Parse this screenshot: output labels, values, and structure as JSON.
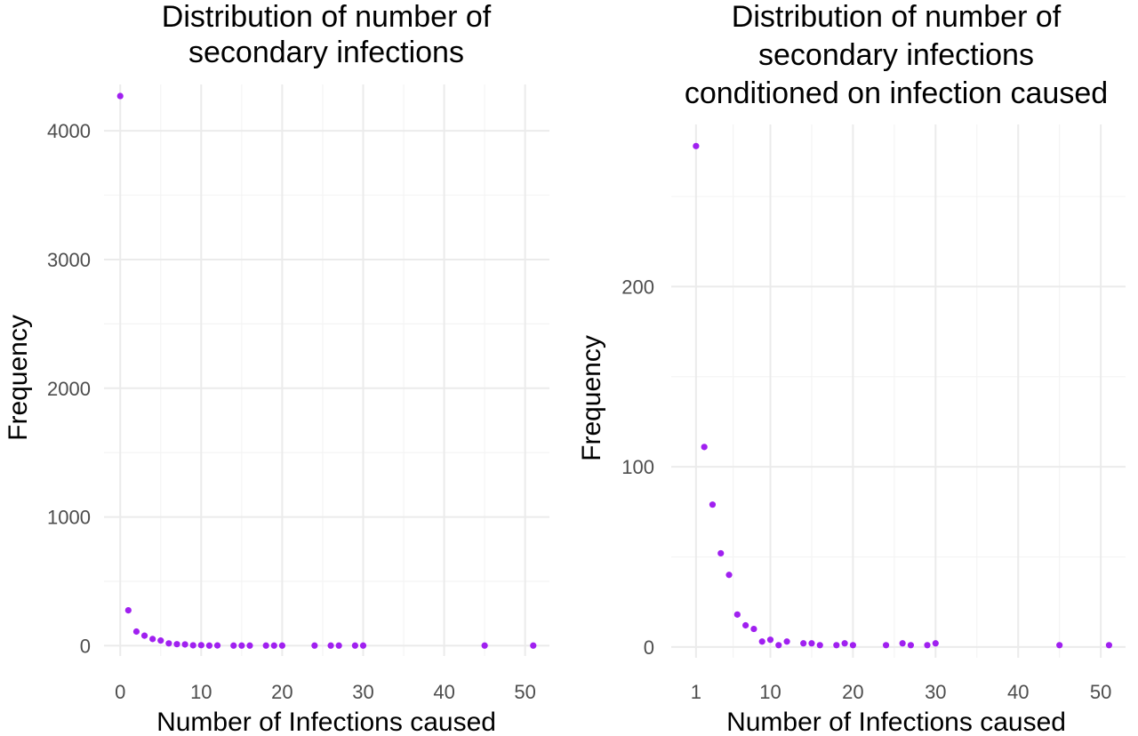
{
  "chart_data": [
    {
      "type": "scatter",
      "title": [
        "Distribution of number of",
        "secondary infections"
      ],
      "xlabel": "Number of Infections caused",
      "ylabel": "Frequency",
      "xlim": [
        -2,
        53
      ],
      "ylim": [
        -80,
        4360
      ],
      "xticks": [
        0,
        10,
        20,
        30,
        40,
        50
      ],
      "yticks": [
        0,
        1000,
        2000,
        3000,
        4000
      ],
      "grid": true,
      "point_color": "#a020f0",
      "points": [
        {
          "x": 0,
          "y": 4270
        },
        {
          "x": 1,
          "y": 275
        },
        {
          "x": 2,
          "y": 110
        },
        {
          "x": 3,
          "y": 78
        },
        {
          "x": 4,
          "y": 52
        },
        {
          "x": 5,
          "y": 40
        },
        {
          "x": 6,
          "y": 18
        },
        {
          "x": 7,
          "y": 12
        },
        {
          "x": 8,
          "y": 10
        },
        {
          "x": 9,
          "y": 3
        },
        {
          "x": 10,
          "y": 4
        },
        {
          "x": 11,
          "y": 1
        },
        {
          "x": 12,
          "y": 2
        },
        {
          "x": 14,
          "y": 1
        },
        {
          "x": 15,
          "y": 1
        },
        {
          "x": 16,
          "y": 1
        },
        {
          "x": 18,
          "y": 1
        },
        {
          "x": 19,
          "y": 1
        },
        {
          "x": 20,
          "y": 1
        },
        {
          "x": 24,
          "y": 1
        },
        {
          "x": 26,
          "y": 1
        },
        {
          "x": 27,
          "y": 1
        },
        {
          "x": 29,
          "y": 1
        },
        {
          "x": 30,
          "y": 1
        },
        {
          "x": 45,
          "y": 1
        },
        {
          "x": 51,
          "y": 1
        }
      ]
    },
    {
      "type": "scatter",
      "title": [
        "Distribution of number of",
        "secondary infections",
        "conditioned on infection caused"
      ],
      "xlabel": "Number of Infections caused",
      "ylabel": "Frequency",
      "xlim": [
        -2,
        53
      ],
      "ylim": [
        -6,
        290
      ],
      "xticks": [
        1,
        10,
        20,
        30,
        40,
        50
      ],
      "yticks": [
        0,
        100,
        200
      ],
      "grid": true,
      "point_color": "#a020f0",
      "points": [
        {
          "x": 1,
          "y": 278
        },
        {
          "x": 2,
          "y": 111
        },
        {
          "x": 3,
          "y": 79
        },
        {
          "x": 4,
          "y": 52
        },
        {
          "x": 5,
          "y": 40
        },
        {
          "x": 6,
          "y": 18
        },
        {
          "x": 7,
          "y": 12
        },
        {
          "x": 8,
          "y": 10
        },
        {
          "x": 9,
          "y": 3
        },
        {
          "x": 10,
          "y": 4
        },
        {
          "x": 11,
          "y": 1
        },
        {
          "x": 12,
          "y": 3
        },
        {
          "x": 14,
          "y": 2
        },
        {
          "x": 15,
          "y": 2
        },
        {
          "x": 16,
          "y": 1
        },
        {
          "x": 18,
          "y": 1
        },
        {
          "x": 19,
          "y": 2
        },
        {
          "x": 20,
          "y": 1
        },
        {
          "x": 24,
          "y": 1
        },
        {
          "x": 26,
          "y": 2
        },
        {
          "x": 27,
          "y": 1
        },
        {
          "x": 29,
          "y": 1
        },
        {
          "x": 30,
          "y": 2
        },
        {
          "x": 45,
          "y": 1
        },
        {
          "x": 51,
          "y": 1
        }
      ]
    }
  ]
}
